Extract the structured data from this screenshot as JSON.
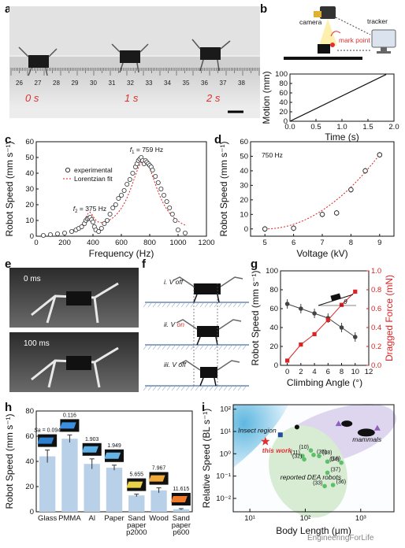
{
  "panels": {
    "a": "a",
    "b": "b",
    "c": "c",
    "d": "d",
    "e": "e",
    "f": "f",
    "g": "g",
    "h": "h",
    "i": "i"
  },
  "panel_a": {
    "times": [
      "0 s",
      "1 s",
      "2 s"
    ],
    "ruler_numbers": [
      "26",
      "27",
      "28",
      "29",
      "30",
      "31",
      "32",
      "33",
      "34",
      "35",
      "36",
      "37",
      "38"
    ]
  },
  "panel_b": {
    "camera_label": "camera",
    "tracker_label": "tracker",
    "mark_label": "mark point"
  },
  "panel_e": {
    "t1": "0 ms",
    "t2": "100 ms"
  },
  "panel_f": {
    "step1": "i. V off",
    "step2_prefix": "ii. V ",
    "step2_on": "on",
    "step3": "iii. V off"
  },
  "watermark": "EngineeringForLife",
  "chart_data": [
    {
      "id": "b",
      "type": "line",
      "xlabel": "Time (s)",
      "ylabel": "Motion (mm)",
      "xlim": [
        0,
        2.0
      ],
      "ylim": [
        0,
        100
      ],
      "xticks": [
        "0.0",
        "0.5",
        "1.0",
        "1.5",
        "2.0"
      ],
      "yticks": [
        "0",
        "20",
        "40",
        "60",
        "80",
        "100"
      ],
      "x": [
        0,
        1.85
      ],
      "y": [
        0,
        99
      ]
    },
    {
      "id": "c",
      "type": "scatter",
      "xlabel": "Frequency (Hz)",
      "ylabel": "Robot Speed (mm s⁻¹)",
      "xlim": [
        0,
        1200
      ],
      "ylim": [
        0,
        60
      ],
      "xticks": [
        "0",
        "200",
        "400",
        "600",
        "800",
        "1000",
        "1200"
      ],
      "yticks": [
        "0",
        "10",
        "20",
        "30",
        "40",
        "50",
        "60"
      ],
      "legend": [
        "experimental",
        "Lorentzian fit"
      ],
      "annotations": {
        "f1_prefix": "f",
        "f1_sub": "1",
        "f1_val": " = 759 Hz",
        "f2_prefix": "f",
        "f2_sub": "2",
        "f2_val": " = 375 Hz"
      },
      "x": [
        50,
        100,
        150,
        200,
        250,
        280,
        300,
        320,
        340,
        350,
        360,
        370,
        380,
        390,
        400,
        410,
        420,
        440,
        460,
        480,
        500,
        520,
        540,
        560,
        580,
        600,
        620,
        640,
        660,
        680,
        700,
        710,
        720,
        730,
        740,
        750,
        760,
        770,
        780,
        790,
        800,
        810,
        820,
        840,
        860,
        880,
        900,
        920,
        940,
        960,
        980,
        1000,
        1050
      ],
      "y": [
        0.5,
        1,
        1.5,
        2,
        3,
        4,
        5,
        6,
        8,
        10,
        11,
        11.5,
        12,
        10.5,
        9,
        6,
        4,
        3,
        5,
        8,
        10,
        14,
        18,
        20,
        24,
        26,
        29,
        33,
        36,
        40,
        44,
        46,
        48,
        49,
        50,
        48,
        46,
        48,
        47,
        46,
        45,
        44,
        42,
        38,
        34,
        30,
        26,
        22,
        18,
        14,
        10,
        4,
        2
      ]
    },
    {
      "id": "d",
      "type": "scatter",
      "xlabel": "Voltage (kV)",
      "ylabel": "Robot Speed (mm s⁻¹)",
      "xlim": [
        4.5,
        9.5
      ],
      "ylim": [
        -5,
        60
      ],
      "xticks": [
        "5",
        "6",
        "7",
        "8",
        "9"
      ],
      "yticks": [
        "0",
        "10",
        "20",
        "30",
        "40",
        "50",
        "60"
      ],
      "annotation": "750 Hz",
      "x": [
        5,
        6,
        7,
        7.5,
        8,
        8.5,
        9
      ],
      "y": [
        0,
        0.5,
        10,
        11,
        27,
        40,
        51
      ]
    },
    {
      "id": "g",
      "type": "line",
      "xlabel": "Climbing Angle (°)",
      "ylabel": "Robot Speed (mm s⁻¹)",
      "y2label": "Dragged Force (mN)",
      "xlim": [
        -1,
        12
      ],
      "ylim": [
        0,
        100
      ],
      "y2lim": [
        0,
        1.0
      ],
      "xticks": [
        "0",
        "2",
        "4",
        "6",
        "8",
        "10",
        "12"
      ],
      "yticks": [
        "0",
        "20",
        "40",
        "60",
        "80",
        "100"
      ],
      "y2ticks": [
        "0.0",
        "0.2",
        "0.4",
        "0.6",
        "0.8",
        "1.0"
      ],
      "inset_label": "θ",
      "series": [
        {
          "x": [
            0,
            2,
            4,
            6,
            8,
            10
          ],
          "values": [
            65,
            60,
            55,
            50,
            40,
            30
          ],
          "color": "#444444"
        },
        {
          "x": [
            0,
            2,
            4,
            6,
            8,
            10
          ],
          "values": [
            0.05,
            0.22,
            0.33,
            0.48,
            0.64,
            0.78
          ],
          "color": "#dd2222"
        }
      ]
    },
    {
      "id": "h",
      "type": "bar",
      "ylabel": "Robot Speed (mm s⁻¹)",
      "ylim": [
        0,
        80
      ],
      "yticks": [
        "0",
        "20",
        "40",
        "60",
        "80"
      ],
      "categories": [
        "Glass",
        "PMMA",
        "Al",
        "Paper",
        "Sand paper p2000",
        "Wood",
        "Sand paper p600"
      ],
      "cat_lines": [
        [
          "Glass"
        ],
        [
          "PMMA"
        ],
        [
          "Al"
        ],
        [
          "Paper"
        ],
        [
          "Sand",
          "paper",
          "p2000"
        ],
        [
          "Wood"
        ],
        [
          "Sand",
          "paper",
          "p600"
        ]
      ],
      "values": [
        44,
        58,
        38,
        35,
        13,
        17,
        2
      ],
      "errors": [
        5,
        3,
        4,
        2,
        1,
        2,
        0.5
      ],
      "roughness_prefix": "Sa",
      "roughness": [
        "= 0.094",
        "0.116",
        "1.903",
        "1.949",
        "5.655",
        "7.967",
        "11.615"
      ],
      "bar_color": "#b9d1e8"
    },
    {
      "id": "i",
      "type": "scatter",
      "xlabel": "Body Length (μm)",
      "ylabel": "Relative Speed (BL s⁻¹)",
      "xscale": "log",
      "yscale": "log",
      "xticks": [
        "10¹",
        "10²",
        "10³"
      ],
      "yticks": [
        "10⁻²",
        "10⁻¹",
        "10⁰",
        "10¹",
        "10²"
      ],
      "regions": [
        "Insect region",
        "mammals",
        "reported DEA robots"
      ],
      "this_work_label": "this work",
      "dea_labels": [
        "(10)",
        "(35)",
        "(11)",
        "(38)",
        "(32)",
        "(16)",
        "(34)",
        "(37)",
        "(33)",
        "(36)"
      ]
    }
  ]
}
